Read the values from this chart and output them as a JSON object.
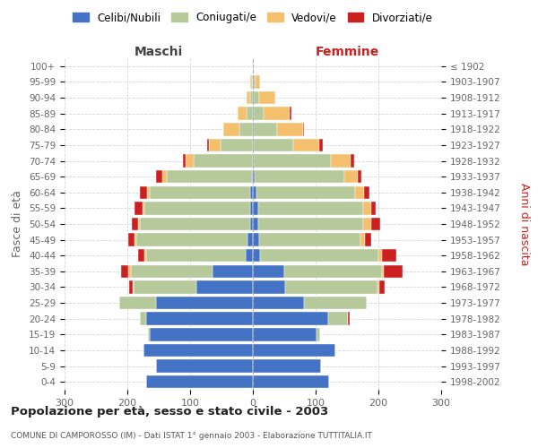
{
  "age_groups": [
    "0-4",
    "5-9",
    "10-14",
    "15-19",
    "20-24",
    "25-29",
    "30-34",
    "35-39",
    "40-44",
    "45-49",
    "50-54",
    "55-59",
    "60-64",
    "65-69",
    "70-74",
    "75-79",
    "80-84",
    "85-89",
    "90-94",
    "95-99",
    "100+"
  ],
  "birth_years": [
    "1998-2002",
    "1993-1997",
    "1988-1992",
    "1983-1987",
    "1978-1982",
    "1973-1977",
    "1968-1972",
    "1963-1967",
    "1958-1962",
    "1953-1957",
    "1948-1952",
    "1943-1947",
    "1938-1942",
    "1933-1937",
    "1928-1932",
    "1923-1927",
    "1918-1922",
    "1913-1917",
    "1908-1912",
    "1903-1907",
    "≤ 1902"
  ],
  "male": {
    "celibe": [
      170,
      155,
      175,
      165,
      170,
      155,
      90,
      65,
      12,
      8,
      5,
      5,
      5,
      2,
      0,
      0,
      0,
      0,
      0,
      0,
      0
    ],
    "coniugato": [
      0,
      0,
      0,
      2,
      10,
      58,
      100,
      130,
      158,
      178,
      175,
      168,
      160,
      135,
      95,
      52,
      22,
      10,
      5,
      2,
      0
    ],
    "vedovo": [
      0,
      0,
      0,
      0,
      0,
      0,
      2,
      3,
      3,
      3,
      3,
      3,
      3,
      8,
      12,
      18,
      25,
      15,
      5,
      2,
      0
    ],
    "divorziato": [
      0,
      0,
      0,
      0,
      0,
      0,
      5,
      12,
      10,
      10,
      10,
      12,
      12,
      10,
      5,
      3,
      0,
      0,
      0,
      0,
      0
    ]
  },
  "female": {
    "nubile": [
      122,
      108,
      132,
      102,
      120,
      82,
      52,
      50,
      12,
      10,
      8,
      8,
      5,
      3,
      2,
      2,
      2,
      2,
      2,
      2,
      0
    ],
    "coniugata": [
      0,
      0,
      0,
      5,
      32,
      100,
      147,
      155,
      188,
      162,
      168,
      168,
      158,
      142,
      122,
      62,
      36,
      15,
      8,
      2,
      0
    ],
    "vedova": [
      0,
      0,
      0,
      0,
      0,
      0,
      3,
      3,
      6,
      6,
      12,
      12,
      14,
      22,
      32,
      42,
      42,
      42,
      25,
      8,
      2
    ],
    "divorziata": [
      0,
      0,
      0,
      0,
      2,
      0,
      8,
      30,
      22,
      10,
      15,
      8,
      8,
      6,
      6,
      5,
      2,
      2,
      0,
      0,
      0
    ]
  },
  "colors": {
    "celibe": "#4472c4",
    "coniugato": "#b5c99a",
    "vedovo": "#f5c06e",
    "divorziato": "#cc2020"
  },
  "xlim": 300,
  "title": "Popolazione per età, sesso e stato civile - 2003",
  "subtitle": "COMUNE DI CAMPOROSSO (IM) - Dati ISTAT 1° gennaio 2003 - Elaborazione TUTTITALIA.IT",
  "ylabel_left": "Fasce di età",
  "ylabel_right": "Anni di nascita",
  "legend_labels": [
    "Celibi/Nubili",
    "Coniugati/e",
    "Vedovi/e",
    "Divorziati/e"
  ],
  "maschi_label": "Maschi",
  "femmine_label": "Femmine",
  "background_color": "#ffffff",
  "grid_color": "#cccccc"
}
